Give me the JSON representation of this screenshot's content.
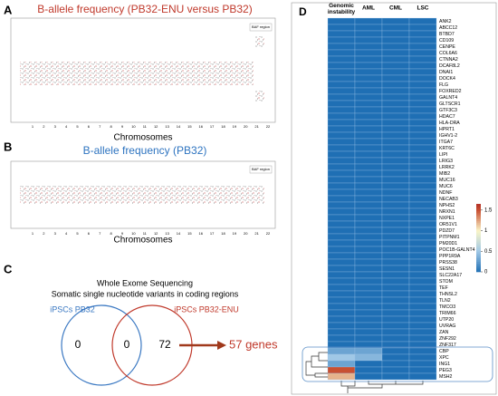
{
  "panel_labels": [
    "A",
    "B",
    "C",
    "D"
  ],
  "panel_a": {
    "title": "B-allele frequency (PB32-ENU versus PB32)",
    "x_label": "Chromosomes",
    "legend": "BAF region",
    "chromosomes": [
      "1",
      "2",
      "3",
      "4",
      "5",
      "6",
      "7",
      "8",
      "9",
      "10",
      "11",
      "12",
      "13",
      "14",
      "15",
      "16",
      "17",
      "18",
      "19",
      "20",
      "21",
      "22"
    ]
  },
  "panel_b": {
    "title": "B-allele frequency (PB32)",
    "x_label": "Chromosomes",
    "legend": "BAF region",
    "chromosomes": [
      "1",
      "2",
      "3",
      "4",
      "5",
      "6",
      "7",
      "8",
      "9",
      "10",
      "11",
      "12",
      "13",
      "14",
      "15",
      "16",
      "17",
      "18",
      "19",
      "20",
      "21",
      "22"
    ]
  },
  "panel_c": {
    "title": "Whole Exome Sequencing",
    "subtitle": "Somatic single nucleotide variants in coding regions",
    "sets": [
      {
        "name": "iPSCs PB32",
        "color": "#3a78c2"
      },
      {
        "name": "iPSCs PB32-ENU",
        "color": "#c0392b"
      }
    ],
    "counts": [
      0,
      0,
      72
    ],
    "result": "57 genes"
  },
  "panel_d": {
    "columns": [
      "Genomic instability",
      "AML",
      "CML",
      "LSC"
    ],
    "genes": [
      "ANK2",
      "ABCC12",
      "BTBD7",
      "CD109",
      "CENPE",
      "COL6A6",
      "CTNNA2",
      "DCAF8L2",
      "DNAI1",
      "DOCK4",
      "FLG",
      "FOXRED2",
      "GALNT4",
      "GLTSCR1",
      "GTF3C3",
      "HDAC7",
      "HLA-DRA",
      "HPRT1",
      "IGHV1-2",
      "ITGA7",
      "KRT6C",
      "LIPI",
      "LRIG3",
      "LRRK2",
      "MIB2",
      "MUC16",
      "MUC6",
      "NDNF",
      "NECAB3",
      "NPHS2",
      "NRXN1",
      "NXPE1",
      "OR51V1",
      "PDZD7",
      "PITPNM1",
      "PM20D1",
      "POC1B-GALNT4",
      "PPP1R9A",
      "PRSS38",
      "SESN1",
      "SLC22A17",
      "STOM",
      "TEF",
      "THNSL2",
      "TLN2",
      "TMCO3",
      "TRIM66",
      "UTP20",
      "UVRAG",
      "ZAN",
      "ZNF292",
      "ZNF317",
      "CBP",
      "XPC",
      "ING1",
      "PEG3",
      "MSH2"
    ],
    "values": [
      [
        0,
        0,
        0,
        0
      ],
      [
        0,
        0,
        0,
        0
      ],
      [
        0,
        0,
        0,
        0
      ],
      [
        0,
        0,
        0,
        0
      ],
      [
        0,
        0,
        0,
        0
      ],
      [
        0,
        0,
        0,
        0
      ],
      [
        0,
        0,
        0,
        0
      ],
      [
        0,
        0,
        0,
        0
      ],
      [
        0,
        0,
        0,
        0
      ],
      [
        0,
        0,
        0,
        0
      ],
      [
        0,
        0,
        0,
        0
      ],
      [
        0,
        0,
        0,
        0
      ],
      [
        0,
        0,
        0,
        0
      ],
      [
        0,
        0,
        0,
        0
      ],
      [
        0,
        0,
        0,
        0
      ],
      [
        0,
        0,
        0,
        0
      ],
      [
        0,
        0,
        0,
        0
      ],
      [
        0,
        0,
        0,
        0
      ],
      [
        0,
        0,
        0,
        0
      ],
      [
        0,
        0,
        0,
        0
      ],
      [
        0,
        0,
        0,
        0
      ],
      [
        0,
        0,
        0,
        0
      ],
      [
        0,
        0,
        0,
        0
      ],
      [
        0,
        0,
        0,
        0
      ],
      [
        0,
        0,
        0,
        0
      ],
      [
        0,
        0,
        0,
        0
      ],
      [
        0,
        0,
        0,
        0
      ],
      [
        0,
        0,
        0,
        0
      ],
      [
        0,
        0,
        0,
        0
      ],
      [
        0,
        0,
        0,
        0
      ],
      [
        0,
        0,
        0,
        0
      ],
      [
        0,
        0,
        0,
        0
      ],
      [
        0,
        0,
        0,
        0
      ],
      [
        0,
        0,
        0,
        0
      ],
      [
        0,
        0,
        0,
        0
      ],
      [
        0,
        0,
        0,
        0
      ],
      [
        0,
        0,
        0,
        0
      ],
      [
        0,
        0,
        0,
        0
      ],
      [
        0,
        0,
        0,
        0
      ],
      [
        0,
        0,
        0,
        0
      ],
      [
        0,
        0,
        0,
        0
      ],
      [
        0,
        0,
        0,
        0
      ],
      [
        0,
        0,
        0,
        0
      ],
      [
        0,
        0,
        0,
        0
      ],
      [
        0,
        0,
        0,
        0
      ],
      [
        0,
        0,
        0,
        0
      ],
      [
        0,
        0,
        0,
        0
      ],
      [
        0,
        0,
        0,
        0
      ],
      [
        0,
        0,
        0,
        0
      ],
      [
        0,
        0,
        0,
        0
      ],
      [
        0,
        0,
        0,
        0
      ],
      [
        0,
        0,
        0,
        0
      ],
      [
        0.3,
        0.3,
        0,
        0
      ],
      [
        0.5,
        0.4,
        0,
        0
      ],
      [
        0.3,
        0,
        0,
        0
      ],
      [
        1.5,
        0,
        0,
        0
      ],
      [
        1.2,
        0,
        0,
        0
      ]
    ],
    "colorbar_range": [
      0,
      1.65
    ],
    "colorbar_ticks": [
      0,
      0.5,
      1,
      1.5
    ]
  }
}
